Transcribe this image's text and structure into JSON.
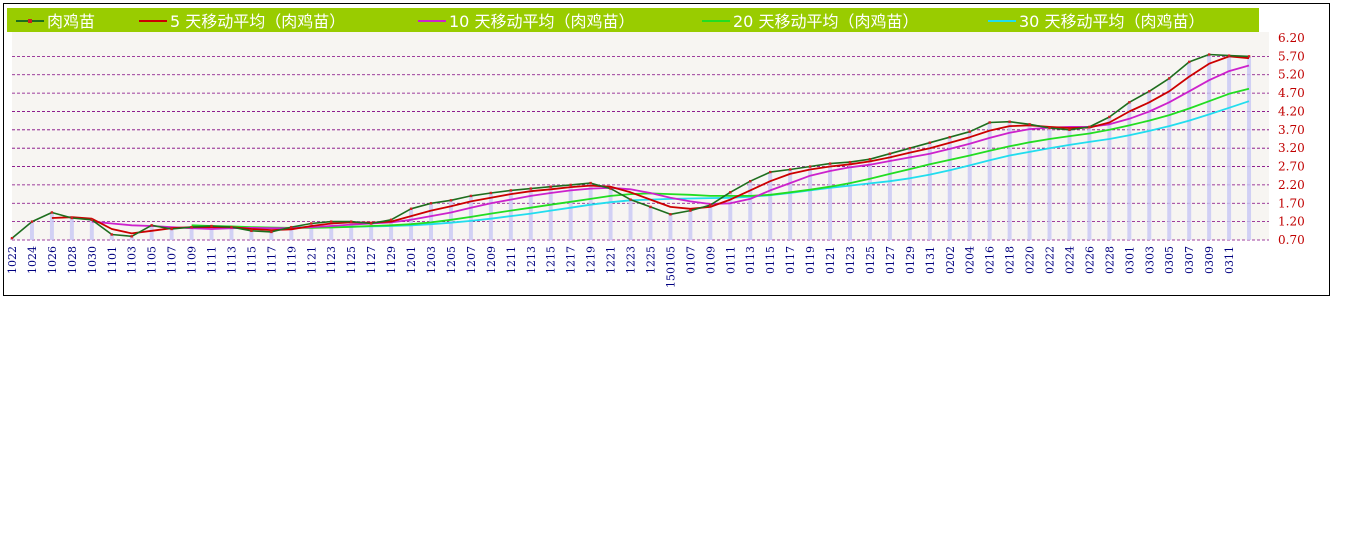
{
  "colors": {
    "legend_bg": "#99cc00",
    "plot_bg": "#f7f5f2",
    "grid": "#800080",
    "bar": "#c8c8f5",
    "price_line": "#1e6e1e",
    "price_marker": "#cc2020",
    "ma5": "#cc0000",
    "ma10": "#cc22cc",
    "ma20": "#22dd22",
    "ma30": "#22ddee",
    "ytick": "#c00000",
    "xtick": "#000080"
  },
  "chart_data": {
    "type": "line",
    "title": "",
    "xlabel": "",
    "ylabel": "",
    "ylim": [
      0.7,
      6.2
    ],
    "yticks": [
      "6.20",
      "5.70",
      "5.20",
      "4.70",
      "4.20",
      "3.70",
      "3.20",
      "2.70",
      "2.20",
      "1.70",
      "1.20",
      "0.70"
    ],
    "xticks": [
      "1022",
      "1024",
      "1026",
      "1028",
      "1030",
      "1101",
      "1103",
      "1105",
      "1107",
      "1109",
      "1111",
      "1113",
      "1115",
      "1117",
      "1119",
      "1121",
      "1123",
      "1125",
      "1127",
      "1129",
      "1201",
      "1203",
      "1205",
      "1207",
      "1209",
      "1211",
      "1213",
      "1215",
      "1217",
      "1219",
      "1221",
      "1223",
      "1225",
      "150105",
      "0107",
      "0109",
      "0111",
      "0113",
      "0115",
      "0117",
      "0119",
      "0121",
      "0123",
      "0125",
      "0127",
      "0129",
      "0131",
      "0202",
      "0204",
      "0216",
      "0218",
      "0220",
      "0222",
      "0224",
      "0226",
      "0228",
      "0301",
      "0303",
      "0305",
      "0307",
      "0309",
      "0311"
    ],
    "grid": true,
    "legend_position": "top",
    "series": [
      {
        "name": "肉鸡苗",
        "key": "price",
        "values": [
          [
            0,
            0.75
          ],
          [
            1,
            1.2
          ],
          [
            2,
            1.45
          ],
          [
            3,
            1.3
          ],
          [
            4,
            1.25
          ],
          [
            5,
            0.85
          ],
          [
            6,
            0.8
          ],
          [
            7,
            1.1
          ],
          [
            8,
            1.0
          ],
          [
            9,
            1.05
          ],
          [
            10,
            1.08
          ],
          [
            11,
            1.05
          ],
          [
            12,
            0.95
          ],
          [
            13,
            0.92
          ],
          [
            14,
            1.05
          ],
          [
            15,
            1.15
          ],
          [
            16,
            1.2
          ],
          [
            17,
            1.2
          ],
          [
            18,
            1.15
          ],
          [
            19,
            1.25
          ],
          [
            20,
            1.55
          ],
          [
            21,
            1.7
          ],
          [
            22,
            1.78
          ],
          [
            23,
            1.9
          ],
          [
            24,
            1.98
          ],
          [
            25,
            2.05
          ],
          [
            26,
            2.1
          ],
          [
            27,
            2.15
          ],
          [
            28,
            2.2
          ],
          [
            29,
            2.25
          ],
          [
            30,
            2.1
          ],
          [
            31,
            1.8
          ],
          [
            32,
            1.6
          ],
          [
            33,
            1.4
          ],
          [
            34,
            1.5
          ],
          [
            35,
            1.65
          ],
          [
            36,
            2.0
          ],
          [
            37,
            2.3
          ],
          [
            38,
            2.55
          ],
          [
            39,
            2.62
          ],
          [
            40,
            2.7
          ],
          [
            41,
            2.78
          ],
          [
            42,
            2.82
          ],
          [
            43,
            2.9
          ],
          [
            44,
            3.05
          ],
          [
            45,
            3.2
          ],
          [
            46,
            3.35
          ],
          [
            47,
            3.5
          ],
          [
            48,
            3.65
          ],
          [
            49,
            3.9
          ],
          [
            50,
            3.92
          ],
          [
            51,
            3.85
          ],
          [
            52,
            3.75
          ],
          [
            53,
            3.7
          ],
          [
            54,
            3.78
          ],
          [
            55,
            4.05
          ],
          [
            56,
            4.45
          ],
          [
            57,
            4.75
          ],
          [
            58,
            5.1
          ],
          [
            59,
            5.55
          ],
          [
            60,
            5.75
          ],
          [
            61,
            5.72
          ],
          [
            62,
            5.7
          ]
        ]
      },
      {
        "name": "5 天移动平均（肉鸡苗）",
        "key": "ma5",
        "values": [
          [
            2,
            1.3
          ],
          [
            3,
            1.32
          ],
          [
            4,
            1.28
          ],
          [
            5,
            1.0
          ],
          [
            6,
            0.88
          ],
          [
            7,
            0.95
          ],
          [
            8,
            1.02
          ],
          [
            9,
            1.05
          ],
          [
            10,
            1.05
          ],
          [
            11,
            1.05
          ],
          [
            12,
            1.0
          ],
          [
            13,
            0.97
          ],
          [
            14,
            0.99
          ],
          [
            15,
            1.08
          ],
          [
            16,
            1.15
          ],
          [
            17,
            1.18
          ],
          [
            18,
            1.17
          ],
          [
            19,
            1.2
          ],
          [
            20,
            1.35
          ],
          [
            21,
            1.5
          ],
          [
            22,
            1.62
          ],
          [
            23,
            1.75
          ],
          [
            24,
            1.85
          ],
          [
            25,
            1.95
          ],
          [
            26,
            2.03
          ],
          [
            27,
            2.08
          ],
          [
            28,
            2.14
          ],
          [
            29,
            2.18
          ],
          [
            30,
            2.15
          ],
          [
            31,
            2.0
          ],
          [
            32,
            1.8
          ],
          [
            33,
            1.6
          ],
          [
            34,
            1.55
          ],
          [
            35,
            1.6
          ],
          [
            36,
            1.8
          ],
          [
            37,
            2.05
          ],
          [
            38,
            2.3
          ],
          [
            39,
            2.5
          ],
          [
            40,
            2.62
          ],
          [
            41,
            2.7
          ],
          [
            42,
            2.76
          ],
          [
            43,
            2.84
          ],
          [
            44,
            2.95
          ],
          [
            45,
            3.08
          ],
          [
            46,
            3.2
          ],
          [
            47,
            3.35
          ],
          [
            48,
            3.5
          ],
          [
            49,
            3.68
          ],
          [
            50,
            3.8
          ],
          [
            51,
            3.82
          ],
          [
            52,
            3.78
          ],
          [
            53,
            3.75
          ],
          [
            54,
            3.76
          ],
          [
            55,
            3.9
          ],
          [
            56,
            4.2
          ],
          [
            57,
            4.45
          ],
          [
            58,
            4.75
          ],
          [
            59,
            5.15
          ],
          [
            60,
            5.5
          ],
          [
            61,
            5.7
          ],
          [
            62,
            5.65
          ]
        ]
      },
      {
        "name": "10 天移动平均（肉鸡苗）",
        "key": "ma10",
        "values": [
          [
            4,
            1.2
          ],
          [
            5,
            1.15
          ],
          [
            6,
            1.1
          ],
          [
            7,
            1.08
          ],
          [
            8,
            1.05
          ],
          [
            9,
            1.02
          ],
          [
            10,
            1.0
          ],
          [
            11,
            1.02
          ],
          [
            12,
            1.03
          ],
          [
            13,
            1.02
          ],
          [
            14,
            1.02
          ],
          [
            15,
            1.05
          ],
          [
            16,
            1.08
          ],
          [
            17,
            1.12
          ],
          [
            18,
            1.15
          ],
          [
            19,
            1.18
          ],
          [
            20,
            1.25
          ],
          [
            21,
            1.35
          ],
          [
            22,
            1.45
          ],
          [
            23,
            1.58
          ],
          [
            24,
            1.7
          ],
          [
            25,
            1.8
          ],
          [
            26,
            1.9
          ],
          [
            27,
            1.98
          ],
          [
            28,
            2.05
          ],
          [
            29,
            2.1
          ],
          [
            30,
            2.12
          ],
          [
            31,
            2.08
          ],
          [
            32,
            1.98
          ],
          [
            33,
            1.85
          ],
          [
            34,
            1.75
          ],
          [
            35,
            1.68
          ],
          [
            36,
            1.7
          ],
          [
            37,
            1.82
          ],
          [
            38,
            2.05
          ],
          [
            39,
            2.25
          ],
          [
            40,
            2.45
          ],
          [
            41,
            2.58
          ],
          [
            42,
            2.68
          ],
          [
            43,
            2.75
          ],
          [
            44,
            2.85
          ],
          [
            45,
            2.95
          ],
          [
            46,
            3.05
          ],
          [
            47,
            3.18
          ],
          [
            48,
            3.32
          ],
          [
            49,
            3.48
          ],
          [
            50,
            3.62
          ],
          [
            51,
            3.72
          ],
          [
            52,
            3.76
          ],
          [
            53,
            3.78
          ],
          [
            54,
            3.78
          ],
          [
            55,
            3.85
          ],
          [
            56,
            4.0
          ],
          [
            57,
            4.2
          ],
          [
            58,
            4.45
          ],
          [
            59,
            4.75
          ],
          [
            60,
            5.05
          ],
          [
            61,
            5.3
          ],
          [
            62,
            5.45
          ]
        ]
      },
      {
        "name": "20 天移动平均（肉鸡苗）",
        "key": "ma20",
        "values": [
          [
            9,
            1.1
          ],
          [
            10,
            1.08
          ],
          [
            11,
            1.07
          ],
          [
            12,
            1.05
          ],
          [
            13,
            1.04
          ],
          [
            14,
            1.03
          ],
          [
            15,
            1.03
          ],
          [
            16,
            1.04
          ],
          [
            17,
            1.06
          ],
          [
            18,
            1.08
          ],
          [
            19,
            1.1
          ],
          [
            20,
            1.13
          ],
          [
            21,
            1.18
          ],
          [
            22,
            1.25
          ],
          [
            23,
            1.33
          ],
          [
            24,
            1.42
          ],
          [
            25,
            1.5
          ],
          [
            26,
            1.58
          ],
          [
            27,
            1.66
          ],
          [
            28,
            1.74
          ],
          [
            29,
            1.82
          ],
          [
            30,
            1.9
          ],
          [
            31,
            1.95
          ],
          [
            32,
            1.97
          ],
          [
            33,
            1.95
          ],
          [
            34,
            1.93
          ],
          [
            35,
            1.9
          ],
          [
            36,
            1.9
          ],
          [
            37,
            1.9
          ],
          [
            38,
            1.93
          ],
          [
            39,
            2.0
          ],
          [
            40,
            2.07
          ],
          [
            41,
            2.15
          ],
          [
            42,
            2.25
          ],
          [
            43,
            2.37
          ],
          [
            44,
            2.5
          ],
          [
            45,
            2.63
          ],
          [
            46,
            2.76
          ],
          [
            47,
            2.88
          ],
          [
            48,
            3.0
          ],
          [
            49,
            3.13
          ],
          [
            50,
            3.25
          ],
          [
            51,
            3.36
          ],
          [
            52,
            3.45
          ],
          [
            53,
            3.53
          ],
          [
            54,
            3.6
          ],
          [
            55,
            3.7
          ],
          [
            56,
            3.82
          ],
          [
            57,
            3.95
          ],
          [
            58,
            4.1
          ],
          [
            59,
            4.28
          ],
          [
            60,
            4.48
          ],
          [
            61,
            4.68
          ],
          [
            62,
            4.82
          ]
        ]
      },
      {
        "name": "30 天移动平均（肉鸡苗）",
        "key": "ma30",
        "values": [
          [
            14,
            1.05
          ],
          [
            15,
            1.05
          ],
          [
            16,
            1.05
          ],
          [
            17,
            1.06
          ],
          [
            18,
            1.07
          ],
          [
            19,
            1.08
          ],
          [
            20,
            1.1
          ],
          [
            21,
            1.13
          ],
          [
            22,
            1.17
          ],
          [
            23,
            1.22
          ],
          [
            24,
            1.28
          ],
          [
            25,
            1.35
          ],
          [
            26,
            1.42
          ],
          [
            27,
            1.5
          ],
          [
            28,
            1.58
          ],
          [
            29,
            1.66
          ],
          [
            30,
            1.73
          ],
          [
            31,
            1.78
          ],
          [
            32,
            1.8
          ],
          [
            33,
            1.82
          ],
          [
            34,
            1.83
          ],
          [
            35,
            1.84
          ],
          [
            36,
            1.85
          ],
          [
            37,
            1.88
          ],
          [
            38,
            1.92
          ],
          [
            39,
            1.98
          ],
          [
            40,
            2.05
          ],
          [
            41,
            2.12
          ],
          [
            42,
            2.18
          ],
          [
            43,
            2.24
          ],
          [
            44,
            2.3
          ],
          [
            45,
            2.38
          ],
          [
            46,
            2.48
          ],
          [
            47,
            2.6
          ],
          [
            48,
            2.73
          ],
          [
            49,
            2.87
          ],
          [
            50,
            3.0
          ],
          [
            51,
            3.1
          ],
          [
            52,
            3.2
          ],
          [
            53,
            3.29
          ],
          [
            54,
            3.37
          ],
          [
            55,
            3.45
          ],
          [
            56,
            3.55
          ],
          [
            57,
            3.67
          ],
          [
            58,
            3.8
          ],
          [
            59,
            3.95
          ],
          [
            60,
            4.12
          ],
          [
            61,
            4.3
          ],
          [
            62,
            4.48
          ]
        ]
      }
    ]
  }
}
